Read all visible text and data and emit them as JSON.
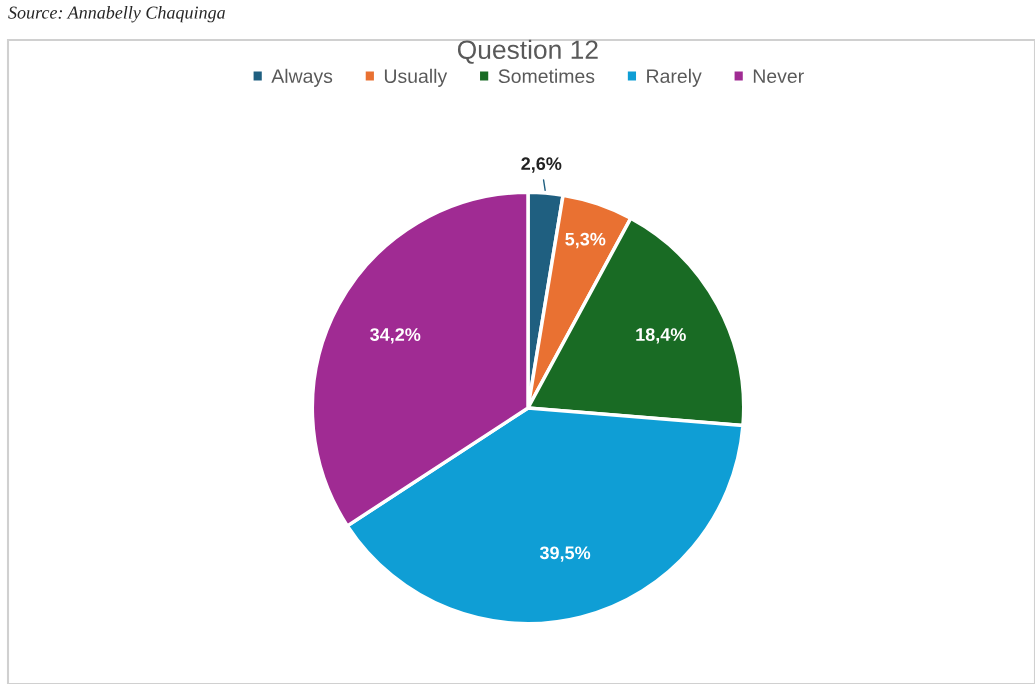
{
  "chart_data": {
    "type": "pie",
    "title": "Question 12",
    "categories": [
      "Always",
      "Usually",
      "Sometimes",
      "Rarely",
      "Never"
    ],
    "values": [
      2.6,
      5.3,
      18.4,
      39.5,
      34.2
    ],
    "value_labels": [
      "2,6%",
      "5,3%",
      "18,4%",
      "39,5%",
      "34,2%"
    ],
    "colors": [
      "#1f5f80",
      "#e97132",
      "#196b24",
      "#0f9ed5",
      "#a02b93"
    ],
    "legend": "top",
    "annotations": [
      "Source: Annabelly Chaquinga"
    ]
  }
}
